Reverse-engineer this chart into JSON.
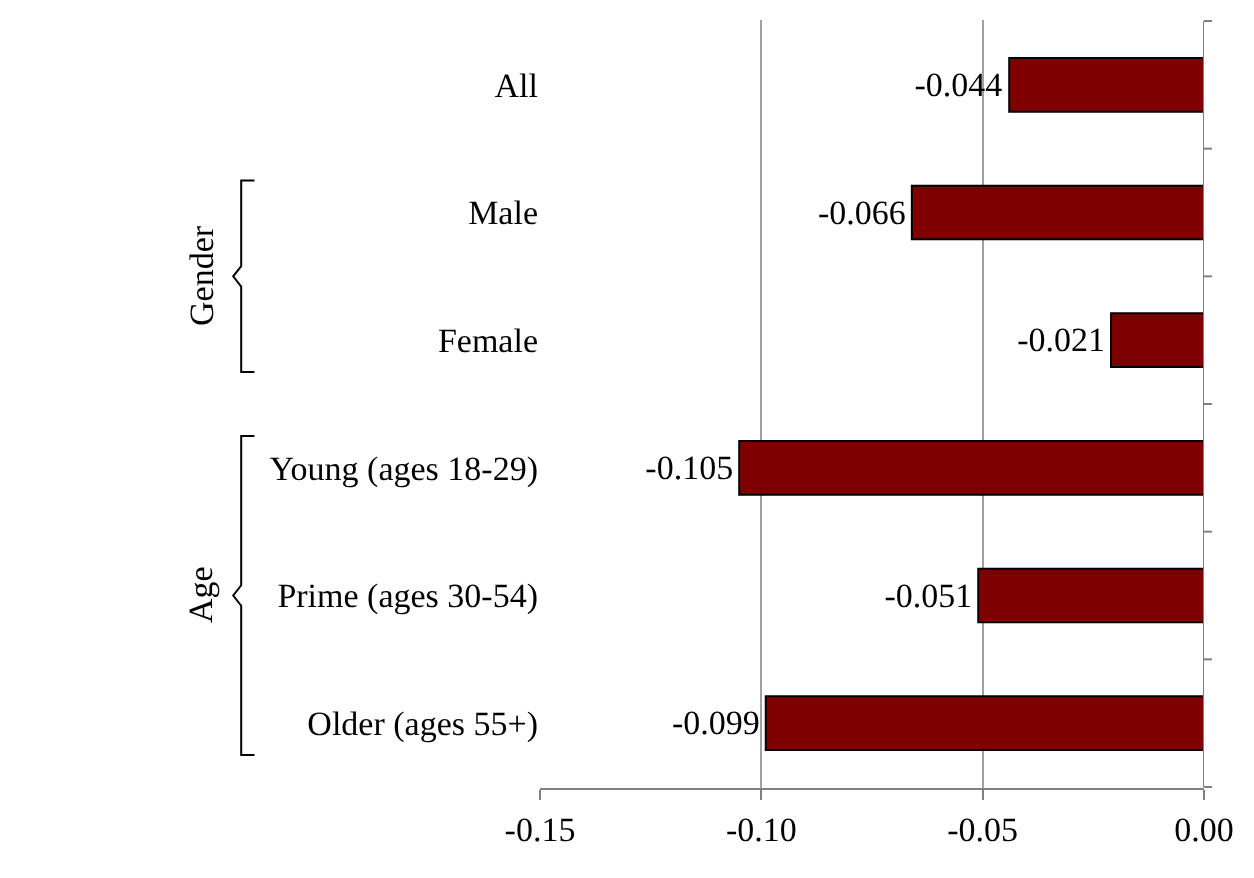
{
  "chart_data": {
    "type": "bar",
    "orientation": "horizontal",
    "categories": [
      "All",
      "Male",
      "Female",
      "Young (ages 18-29)",
      "Prime (ages 30-54)",
      "Older (ages 55+)"
    ],
    "values": [
      -0.044,
      -0.066,
      -0.021,
      -0.105,
      -0.051,
      -0.099
    ],
    "colors": [
      "#7f0000",
      "#7f0000",
      "#7f0000",
      "#7f0000",
      "#7f0000",
      "#7f0000"
    ],
    "xlim": [
      -0.15,
      0.0
    ],
    "xticks": [
      {
        "value": -0.15,
        "label": "-0.15"
      },
      {
        "value": -0.1,
        "label": "-0.10"
      },
      {
        "value": -0.05,
        "label": "-0.05"
      },
      {
        "value": 0.0,
        "label": "0.00"
      }
    ],
    "grid": "x",
    "data_labels": true,
    "legend": false,
    "annotations": [
      "Gender",
      "Age"
    ]
  }
}
